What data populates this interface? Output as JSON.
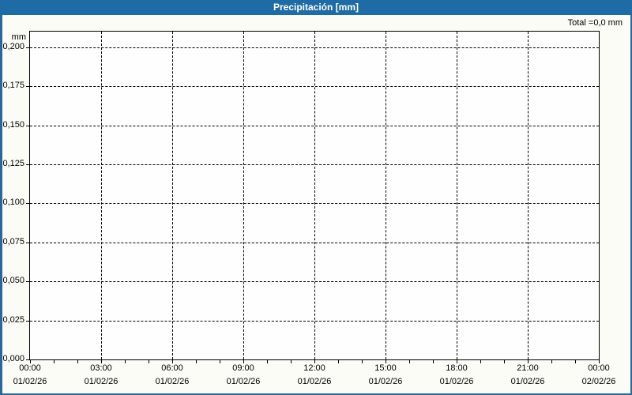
{
  "window": {
    "title": "Precipitación [mm]"
  },
  "chart_data": {
    "type": "bar",
    "title": "Precipitación [mm]",
    "unit": "mm",
    "total_label": "Total =0,0 mm",
    "grid": "dashed",
    "legend": "none",
    "xlim_hours": [
      0,
      24
    ],
    "ylim": [
      0,
      0.21
    ],
    "x_minor_step_hours": 1,
    "y_ticks": [
      {
        "value": 0.0,
        "label": "0,000"
      },
      {
        "value": 0.025,
        "label": "0,025"
      },
      {
        "value": 0.05,
        "label": "0,050"
      },
      {
        "value": 0.075,
        "label": "0,075"
      },
      {
        "value": 0.1,
        "label": "0,100"
      },
      {
        "value": 0.125,
        "label": "0,125"
      },
      {
        "value": 0.15,
        "label": "0,150"
      },
      {
        "value": 0.175,
        "label": "0,175"
      },
      {
        "value": 0.2,
        "label": "0,200"
      }
    ],
    "x_ticks": [
      {
        "hour": 0,
        "time": "00:00",
        "date": "01/02/26"
      },
      {
        "hour": 3,
        "time": "03:00",
        "date": "01/02/26"
      },
      {
        "hour": 6,
        "time": "06:00",
        "date": "01/02/26"
      },
      {
        "hour": 9,
        "time": "09:00",
        "date": "01/02/26"
      },
      {
        "hour": 12,
        "time": "12:00",
        "date": "01/02/26"
      },
      {
        "hour": 15,
        "time": "15:00",
        "date": "01/02/26"
      },
      {
        "hour": 18,
        "time": "18:00",
        "date": "01/02/26"
      },
      {
        "hour": 21,
        "time": "21:00",
        "date": "01/02/26"
      },
      {
        "hour": 24,
        "time": "00:00",
        "date": "02/02/26"
      }
    ],
    "series": [
      {
        "name": "Precipitación",
        "values": [],
        "total_mm": 0.0
      }
    ],
    "colors": {
      "titlebar_bg": "#1f6ba5",
      "titlebar_text": "#ffffff",
      "window_border": "#2a689c",
      "window_bg": "#fbfcf5",
      "plot_bg": "#fefefe",
      "grid": "#000000",
      "text": "#000000"
    }
  }
}
